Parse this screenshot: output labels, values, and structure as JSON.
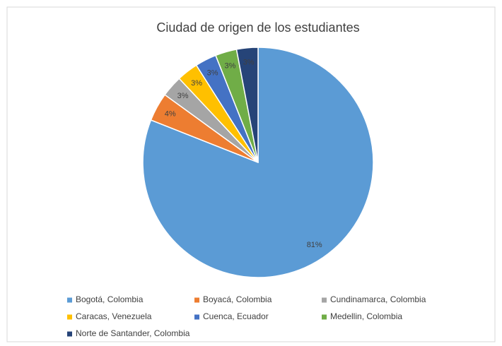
{
  "chart_data": {
    "type": "pie",
    "title": "Ciudad de origen de los estudiantes",
    "categories": [
      "Bogotá, Colombia",
      "Boyacá, Colombia",
      "Cundinamarca, Colombia",
      "Caracas, Venezuela",
      "Cuenca, Ecuador",
      "Medellin, Colombia",
      "Norte de Santander, Colombia"
    ],
    "values": [
      81,
      4,
      3,
      3,
      3,
      3,
      3
    ],
    "value_labels": [
      "81%",
      "4%",
      "3%",
      "3%",
      "3%",
      "3%",
      "3%"
    ],
    "colors": [
      "#5b9bd5",
      "#ed7d31",
      "#a5a5a5",
      "#ffc000",
      "#4472c4",
      "#70ad47",
      "#264478"
    ],
    "legend": "bottom"
  }
}
